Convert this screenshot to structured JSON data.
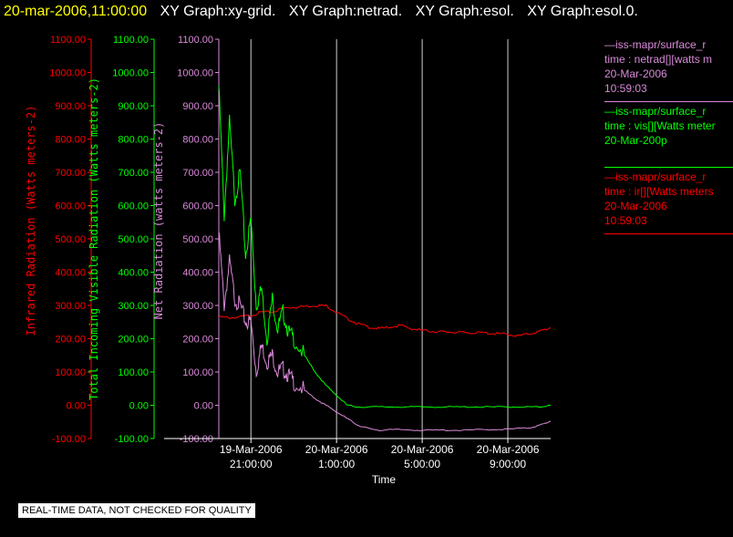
{
  "header": {
    "timestamp": "20-mar-2006,11:00:00",
    "graph_tabs": [
      "XY Graph:xy-grid.",
      "XY Graph:netrad.",
      "XY Graph:esol.",
      "XY Graph:esol.0."
    ]
  },
  "legend": [
    {
      "color": "#d98ad9",
      "lines": [
        "—iss-mapr/surface_r",
        "time : netrad[][watts m",
        "20-Mar-2006",
        "10:59:03"
      ]
    },
    {
      "color": "#00ff00",
      "lines": [
        "—iss-mapr/surface_r",
        "time : vis[][Watts meter",
        "20-Mar-200p"
      ]
    },
    {
      "color": "#ff0000",
      "lines": [
        "—iss-mapr/surface_r",
        "time : ir[][Watts meters",
        "20-Mar-2006",
        "10:59:03"
      ]
    }
  ],
  "notice": "REAL-TIME DATA, NOT CHECKED FOR QUALITY",
  "colors": {
    "ir": "#ff0000",
    "vis": "#00ff00",
    "net": "#d98ad9",
    "grid": "#ffffff",
    "axis": "#ffffff"
  },
  "chart_data": {
    "type": "line",
    "xlabel": "Time",
    "x_ticks": [
      {
        "t": 0,
        "lines": [
          "19-Mar-2006",
          "21:00:00"
        ]
      },
      {
        "t": 4,
        "lines": [
          "20-Mar-2006",
          "1:00:00"
        ]
      },
      {
        "t": 8,
        "lines": [
          "20-Mar-2006",
          "5:00:00"
        ]
      },
      {
        "t": 12,
        "lines": [
          "20-Mar-2006",
          "9:00:00"
        ]
      }
    ],
    "xlim": [
      "19-Mar-2006 19:30",
      "20-Mar-2006 11:00"
    ],
    "ylim": [
      -100,
      1100
    ],
    "y_ticks": [
      "-100.00",
      "0.00",
      "100.00",
      "200.00",
      "300.00",
      "400.00",
      "500.00",
      "600.00",
      "700.00",
      "800.00",
      "900.00",
      "1000.00",
      "1100.00"
    ],
    "axes": [
      {
        "label": "Infrared Radiation (Watts meters-2)",
        "color": "#ff0000"
      },
      {
        "label": "Total Incoming Visible Radiation (Watts meters-2)",
        "color": "#00ff00"
      },
      {
        "label": "Net Radiation (watts meters-2)",
        "color": "#d98ad9"
      }
    ],
    "series": [
      {
        "name": "ir",
        "color": "#ff0000",
        "x": [
          "19:30",
          "20:00",
          "20:30",
          "21:00",
          "21:30",
          "22:00",
          "22:30",
          "23:00",
          "23:30",
          "00:00",
          "00:30",
          "01:00",
          "01:30",
          "02:00",
          "02:30",
          "03:00",
          "03:30",
          "04:00",
          "04:30",
          "05:00",
          "05:30",
          "06:00",
          "06:30",
          "07:00",
          "07:30",
          "08:00",
          "08:30",
          "09:00",
          "09:30",
          "10:00",
          "10:30",
          "11:00"
        ],
        "values": [
          265,
          263,
          265,
          270,
          280,
          280,
          292,
          295,
          297,
          300,
          299,
          280,
          260,
          245,
          235,
          230,
          235,
          240,
          230,
          225,
          222,
          220,
          220,
          218,
          218,
          217,
          215,
          213,
          208,
          215,
          222,
          233
        ]
      },
      {
        "name": "vis",
        "color": "#00ff00",
        "x": [
          "19:30",
          "19:45",
          "20:00",
          "20:15",
          "20:30",
          "20:45",
          "21:00",
          "21:15",
          "21:30",
          "21:45",
          "22:00",
          "22:15",
          "22:30",
          "22:45",
          "23:00",
          "23:30",
          "00:00",
          "00:30",
          "01:00",
          "01:30",
          "02:00",
          "03:00",
          "04:00",
          "05:00",
          "06:00",
          "07:00",
          "08:00",
          "09:00",
          "10:00",
          "10:30",
          "11:00"
        ],
        "values": [
          960,
          570,
          850,
          620,
          700,
          450,
          560,
          300,
          350,
          200,
          320,
          230,
          280,
          220,
          200,
          150,
          100,
          60,
          30,
          0,
          -5,
          -5,
          -5,
          -5,
          -5,
          -5,
          -5,
          -5,
          -5,
          -5,
          0
        ]
      },
      {
        "name": "net",
        "color": "#d98ad9",
        "x": [
          "19:30",
          "19:45",
          "20:00",
          "20:15",
          "20:30",
          "20:45",
          "21:00",
          "21:15",
          "21:30",
          "21:45",
          "22:00",
          "22:15",
          "22:30",
          "22:45",
          "23:00",
          "23:30",
          "00:00",
          "00:30",
          "01:00",
          "01:30",
          "02:00",
          "02:30",
          "03:00",
          "04:00",
          "05:00",
          "06:00",
          "07:00",
          "08:00",
          "09:00",
          "10:00",
          "10:30",
          "11:00"
        ],
        "values": [
          520,
          300,
          430,
          320,
          300,
          250,
          250,
          100,
          180,
          130,
          150,
          100,
          110,
          90,
          70,
          45,
          20,
          0,
          -20,
          -40,
          -60,
          -70,
          -75,
          -73,
          -75,
          -75,
          -75,
          -73,
          -72,
          -68,
          -60,
          -48
        ]
      }
    ]
  }
}
